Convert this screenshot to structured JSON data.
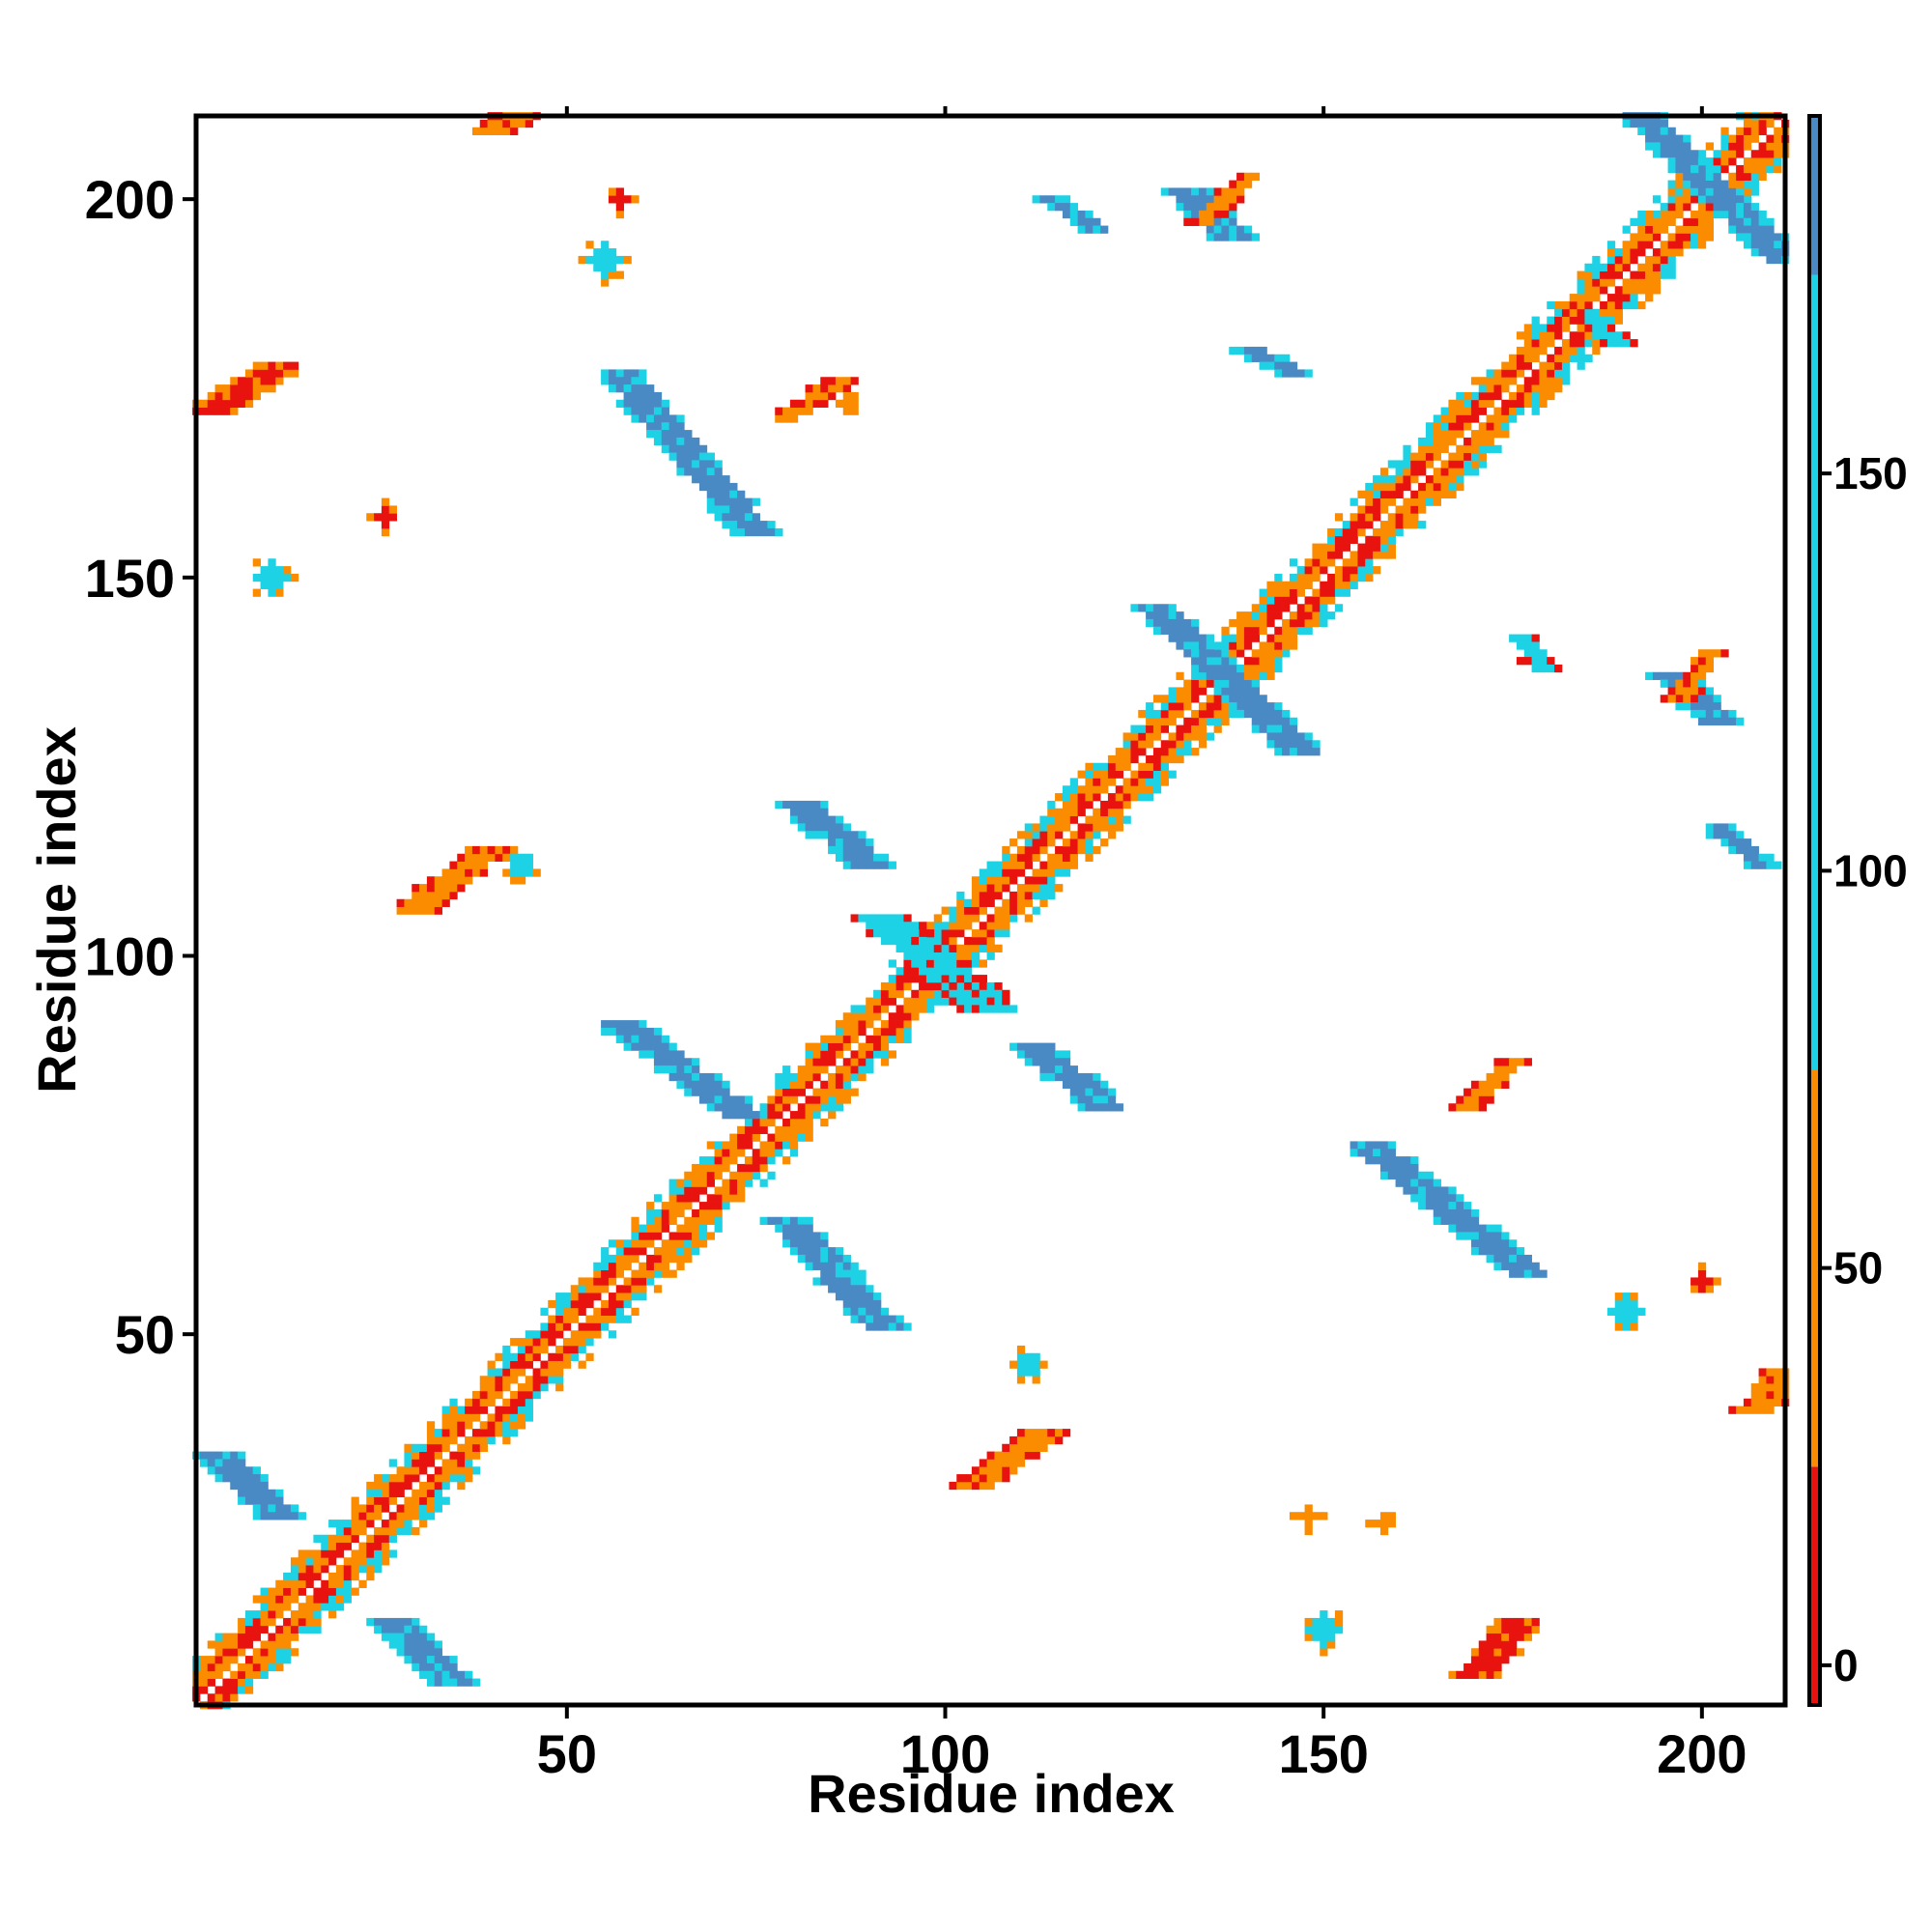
{
  "chart_data": {
    "type": "heatmap",
    "title": "",
    "xlabel": "Residue index",
    "ylabel": "Residue index",
    "xlim": [
      1,
      211
    ],
    "ylim": [
      1,
      211
    ],
    "x_ticks": [
      50,
      100,
      150,
      200
    ],
    "y_ticks": [
      50,
      100,
      150,
      200
    ],
    "grid": false,
    "legend": "colorbar-right",
    "colorbar": {
      "range": [
        -5,
        195
      ],
      "ticks": [
        0,
        50,
        100,
        150
      ],
      "bands": [
        {
          "from": -5,
          "to": 25,
          "color": "#e8130f"
        },
        {
          "from": 25,
          "to": 75,
          "color": "#fb8c00"
        },
        {
          "from": 75,
          "to": 175,
          "color": "#1ed2e6"
        },
        {
          "from": 175,
          "to": 195,
          "color": "#4a8ac4"
        }
      ]
    },
    "colors": {
      "red": "#e8130f",
      "orange": "#fb8c00",
      "cyan": "#1ed2e6",
      "blue": "#4a8ac4"
    },
    "features": [
      {
        "kind": "diagonal",
        "from": 1,
        "to": 211,
        "width": 6
      },
      {
        "kind": "band",
        "from": [
          57,
          91
        ],
        "to": [
          73,
          79
        ],
        "width": 3,
        "color": "blue"
      },
      {
        "kind": "band",
        "from": [
          79,
          65
        ],
        "to": [
          92,
          51
        ],
        "width": 3,
        "color": "blue"
      },
      {
        "kind": "band",
        "from": [
          81,
          120
        ],
        "to": [
          90,
          112
        ],
        "width": 3,
        "color": "blue"
      },
      {
        "kind": "band",
        "from": [
          112,
          88
        ],
        "to": [
          121,
          80
        ],
        "width": 3,
        "color": "blue"
      },
      {
        "kind": "band",
        "from": [
          92,
          105
        ],
        "to": [
          106,
          93
        ],
        "width": 4,
        "color": "cyan"
      },
      {
        "kind": "band",
        "from": [
          128,
          146
        ],
        "to": [
          147,
          127
        ],
        "width": 3,
        "color": "blue"
      },
      {
        "kind": "band",
        "from": [
          57,
          177
        ],
        "to": [
          75,
          156
        ],
        "width": 3,
        "color": "blue"
      },
      {
        "kind": "band",
        "from": [
          156,
          75
        ],
        "to": [
          177,
          58
        ],
        "width": 3,
        "color": "blue"
      },
      {
        "kind": "band",
        "from": [
          191,
          212
        ],
        "to": [
          211,
          192
        ],
        "width": 3,
        "color": "blue"
      },
      {
        "kind": "band",
        "from": [
          4,
          34
        ],
        "to": [
          12,
          26
        ],
        "width": 3,
        "color": "blue"
      },
      {
        "kind": "band",
        "from": [
          27,
          12
        ],
        "to": [
          35,
          4
        ],
        "width": 3,
        "color": "blue"
      },
      {
        "kind": "band",
        "from": [
          132,
          201
        ],
        "to": [
          138,
          195
        ],
        "width": 3,
        "color": "blue"
      },
      {
        "kind": "band",
        "from": [
          196,
          137
        ],
        "to": [
          202,
          131
        ],
        "width": 3,
        "color": "blue"
      },
      {
        "kind": "band",
        "from": [
          202,
          117
        ],
        "to": [
          208,
          112
        ],
        "width": 2,
        "color": "blue"
      },
      {
        "kind": "band",
        "from": [
          114,
          200
        ],
        "to": [
          120,
          196
        ],
        "width": 2,
        "color": "blue"
      },
      {
        "kind": "band",
        "from": [
          140,
          180
        ],
        "to": [
          146,
          177
        ],
        "width": 2,
        "color": "blue"
      },
      {
        "kind": "band",
        "from": [
          176,
          142
        ],
        "to": [
          179,
          138
        ],
        "width": 2,
        "color": "cyan"
      },
      {
        "kind": "band",
        "from": [
          185,
          185
        ],
        "to": [
          189,
          181
        ],
        "width": 2,
        "color": "cyan"
      },
      {
        "kind": "band",
        "from": [
          3,
          172
        ],
        "to": [
          12,
          178
        ],
        "width": 3,
        "color": "red"
      },
      {
        "kind": "band",
        "from": [
          170,
          5
        ],
        "to": [
          176,
          12
        ],
        "width": 3,
        "color": "red"
      },
      {
        "kind": "band",
        "from": [
          30,
          106
        ],
        "to": [
          39,
          114
        ],
        "width": 3,
        "color": "orange"
      },
      {
        "kind": "band",
        "from": [
          104,
          30
        ],
        "to": [
          113,
          37
        ],
        "width": 3,
        "color": "orange"
      },
      {
        "kind": "band",
        "from": [
          40,
          209
        ],
        "to": [
          45,
          212
        ],
        "width": 3,
        "color": "orange"
      },
      {
        "kind": "band",
        "from": [
          207,
          40
        ],
        "to": [
          211,
          45
        ],
        "width": 3,
        "color": "orange"
      },
      {
        "kind": "band",
        "from": [
          79,
          171
        ],
        "to": [
          86,
          176
        ],
        "width": 2,
        "color": "orange"
      },
      {
        "kind": "band",
        "from": [
          169,
          80
        ],
        "to": [
          175,
          86
        ],
        "width": 2,
        "color": "orange"
      },
      {
        "kind": "band",
        "from": [
          197,
          134
        ],
        "to": [
          201,
          140
        ],
        "width": 2,
        "color": "orange"
      },
      {
        "kind": "band",
        "from": [
          134,
          197
        ],
        "to": [
          140,
          203
        ],
        "width": 2,
        "color": "orange"
      },
      {
        "kind": "blob",
        "center": [
          11,
          150
        ],
        "radius": 2.2,
        "color": "cyan"
      },
      {
        "kind": "blob",
        "center": [
          55,
          192
        ],
        "radius": 2.2,
        "color": "cyan"
      },
      {
        "kind": "blob",
        "center": [
          150,
          11
        ],
        "radius": 2.2,
        "color": "cyan"
      },
      {
        "kind": "blob",
        "center": [
          190,
          53
        ],
        "radius": 2,
        "color": "cyan"
      },
      {
        "kind": "blob",
        "center": [
          111,
          46
        ],
        "radius": 1.8,
        "color": "cyan"
      },
      {
        "kind": "blob",
        "center": [
          44,
          112
        ],
        "radius": 1.8,
        "color": "cyan"
      },
      {
        "kind": "blob",
        "center": [
          26,
          158
        ],
        "radius": 1.2,
        "color": "red"
      },
      {
        "kind": "blob",
        "center": [
          57,
          200
        ],
        "radius": 1.2,
        "color": "red"
      },
      {
        "kind": "blob",
        "center": [
          200,
          57
        ],
        "radius": 1.2,
        "color": "red"
      },
      {
        "kind": "blob",
        "center": [
          148,
          26
        ],
        "radius": 1.2,
        "color": "orange"
      },
      {
        "kind": "blob",
        "center": [
          158,
          25
        ],
        "radius": 1.2,
        "color": "orange"
      },
      {
        "kind": "blob",
        "center": [
          87,
          173
        ],
        "radius": 1,
        "color": "orange"
      }
    ]
  }
}
